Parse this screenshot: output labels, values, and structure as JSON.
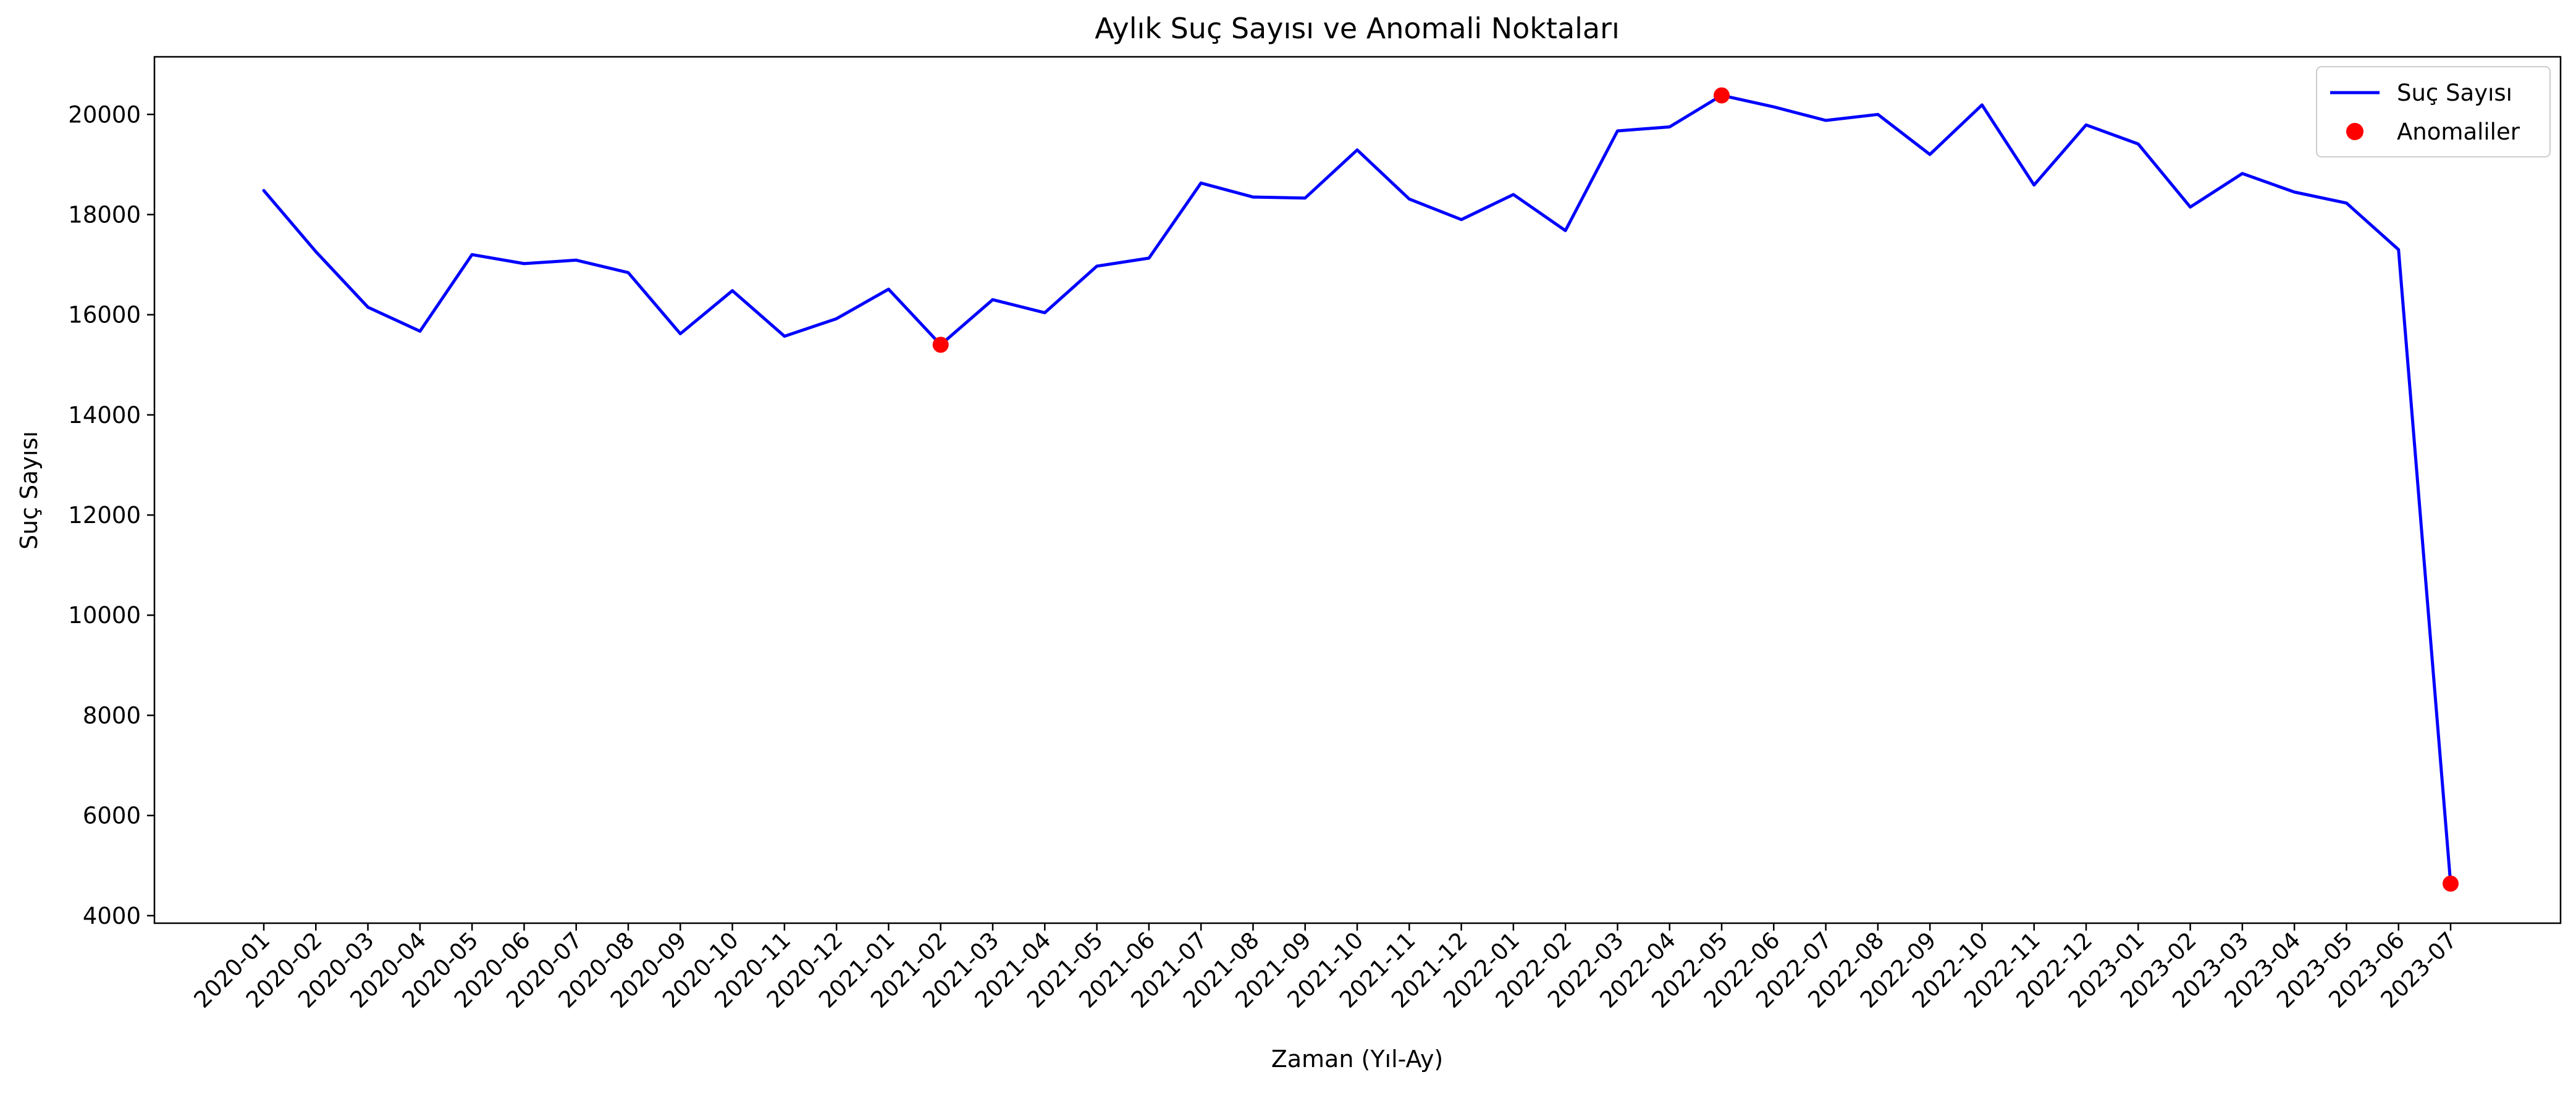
{
  "chart_data": {
    "type": "line",
    "title": "Aylık Suç Sayısı ve Anomali Noktaları",
    "xlabel": "Zaman (Yıl-Ay)",
    "ylabel": "Suç Sayısı",
    "ylim": [
      3850,
      21150
    ],
    "yticks": [
      4000,
      6000,
      8000,
      10000,
      12000,
      14000,
      16000,
      18000,
      20000
    ],
    "grid": false,
    "legend_position": "top-right",
    "categories": [
      "2020-01",
      "2020-02",
      "2020-03",
      "2020-04",
      "2020-05",
      "2020-06",
      "2020-07",
      "2020-08",
      "2020-09",
      "2020-10",
      "2020-11",
      "2020-12",
      "2021-01",
      "2021-02",
      "2021-03",
      "2021-04",
      "2021-05",
      "2021-06",
      "2021-07",
      "2021-08",
      "2021-09",
      "2021-10",
      "2021-11",
      "2021-12",
      "2022-01",
      "2022-02",
      "2022-03",
      "2022-04",
      "2022-05",
      "2022-06",
      "2022-07",
      "2022-08",
      "2022-09",
      "2022-10",
      "2022-11",
      "2022-12",
      "2023-01",
      "2023-02",
      "2023-03",
      "2023-04",
      "2023-05",
      "2023-06",
      "2023-07"
    ],
    "series": [
      {
        "name": "Suç Sayısı",
        "kind": "line",
        "color": "#0000ff",
        "values": [
          18480,
          17260,
          16150,
          15670,
          17200,
          17020,
          17090,
          16840,
          15620,
          16480,
          15570,
          15920,
          16510,
          15400,
          16300,
          16040,
          16970,
          17130,
          18630,
          18350,
          18330,
          19290,
          18310,
          17900,
          18400,
          17680,
          19670,
          19750,
          20380,
          20150,
          19880,
          20000,
          19200,
          20190,
          18590,
          19790,
          19410,
          18150,
          18820,
          18450,
          18230,
          17300,
          4640
        ]
      },
      {
        "name": "Anomaliler",
        "kind": "scatter",
        "color": "#ff0000",
        "points": [
          {
            "x": "2021-02",
            "y": 15400
          },
          {
            "x": "2022-05",
            "y": 20380
          },
          {
            "x": "2023-07",
            "y": 4640
          }
        ]
      }
    ]
  }
}
